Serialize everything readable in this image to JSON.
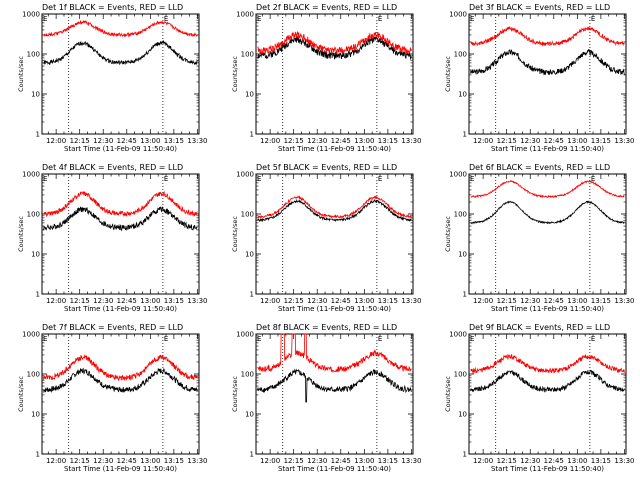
{
  "figure": {
    "background": "#ffffff",
    "colors": {
      "events": "#000000",
      "lld": "#ff0000",
      "axes": "#000000"
    }
  },
  "chart_data": [
    {
      "type": "line",
      "title": "Det 1f BLACK = Events, RED = LLD",
      "xlabel": "Start Time (11-Feb-09 11:50:40)",
      "ylabel": "Counts/sec",
      "yscale": "log",
      "ylim": [
        1,
        1000
      ],
      "y_tick_labels": [
        "1",
        "10",
        "100",
        "1000"
      ],
      "x_tick_labels": [
        "12:00",
        "12:15",
        "12:30",
        "12:45",
        "13:00",
        "13:15",
        "13:30"
      ],
      "vertical_dotted_lines": [
        "12:08",
        "13:08"
      ],
      "markers": [
        "E",
        "E"
      ],
      "grid": false,
      "series": [
        {
          "name": "BLACK = Events",
          "color": "#000000",
          "baseline": 60,
          "peak": 190,
          "peak1": "12:17",
          "peak2": "13:07",
          "noise": 0.05
        },
        {
          "name": "RED = LLD",
          "color": "#ff0000",
          "baseline": 300,
          "peak": 620,
          "peak1": "12:17",
          "peak2": "13:07",
          "noise": 0.04
        }
      ]
    },
    {
      "type": "line",
      "title": "Det 2f BLACK = Events, RED = LLD",
      "xlabel": "Start Time (11-Feb-09 11:50:40)",
      "ylabel": "Counts/sec",
      "yscale": "log",
      "ylim": [
        1,
        1000
      ],
      "y_tick_labels": [
        "1",
        "10",
        "100",
        "1000"
      ],
      "x_tick_labels": [
        "12:00",
        "12:15",
        "12:30",
        "12:45",
        "13:00",
        "13:15",
        "13:30"
      ],
      "vertical_dotted_lines": [
        "12:08",
        "13:08"
      ],
      "markers": [
        "E",
        "E"
      ],
      "grid": false,
      "series": [
        {
          "name": "BLACK = Events",
          "color": "#000000",
          "baseline": 90,
          "peak": 230,
          "peak1": "12:17",
          "peak2": "13:07",
          "noise": 0.09
        },
        {
          "name": "RED = LLD",
          "color": "#ff0000",
          "baseline": 120,
          "peak": 300,
          "peak1": "12:17",
          "peak2": "13:07",
          "noise": 0.09
        }
      ]
    },
    {
      "type": "line",
      "title": "Det 3f BLACK = Events, RED = LLD",
      "xlabel": "Start Time (11-Feb-09 11:50:40)",
      "ylabel": "Counts/sec",
      "yscale": "log",
      "ylim": [
        1,
        1000
      ],
      "y_tick_labels": [
        "1",
        "10",
        "100",
        "1000"
      ],
      "x_tick_labels": [
        "12:00",
        "12:15",
        "12:30",
        "12:45",
        "13:00",
        "13:15",
        "13:30"
      ],
      "vertical_dotted_lines": [
        "12:08",
        "13:08"
      ],
      "markers": [
        "E",
        "E"
      ],
      "grid": false,
      "series": [
        {
          "name": "BLACK = Events",
          "color": "#000000",
          "baseline": 35,
          "peak": 110,
          "peak1": "12:17",
          "peak2": "13:07",
          "noise": 0.07
        },
        {
          "name": "RED = LLD",
          "color": "#ff0000",
          "baseline": 180,
          "peak": 430,
          "peak1": "12:17",
          "peak2": "13:07",
          "noise": 0.05
        }
      ]
    },
    {
      "type": "line",
      "title": "Det 4f BLACK = Events, RED = LLD",
      "xlabel": "Start Time (11-Feb-09 11:50:40)",
      "ylabel": "Counts/sec",
      "yscale": "log",
      "ylim": [
        1,
        1000
      ],
      "y_tick_labels": [
        "1",
        "10",
        "100",
        "1000"
      ],
      "x_tick_labels": [
        "12:00",
        "12:15",
        "12:30",
        "12:45",
        "13:00",
        "13:15",
        "13:30"
      ],
      "vertical_dotted_lines": [
        "12:08",
        "13:08"
      ],
      "markers": [
        "E",
        "E"
      ],
      "grid": false,
      "series": [
        {
          "name": "BLACK = Events",
          "color": "#000000",
          "baseline": 45,
          "peak": 130,
          "peak1": "12:17",
          "peak2": "13:07",
          "noise": 0.07
        },
        {
          "name": "RED = LLD",
          "color": "#ff0000",
          "baseline": 100,
          "peak": 320,
          "peak1": "12:17",
          "peak2": "13:07",
          "noise": 0.06
        }
      ]
    },
    {
      "type": "line",
      "title": "Det 5f BLACK = Events, RED = LLD",
      "xlabel": "Start Time (11-Feb-09 11:50:40)",
      "ylabel": "Counts/sec",
      "yscale": "log",
      "ylim": [
        1,
        1000
      ],
      "y_tick_labels": [
        "1",
        "10",
        "100",
        "1000"
      ],
      "x_tick_labels": [
        "12:00",
        "12:15",
        "12:30",
        "12:45",
        "13:00",
        "13:15",
        "13:30"
      ],
      "vertical_dotted_lines": [
        "12:08",
        "13:08"
      ],
      "markers": [
        "E",
        "E"
      ],
      "grid": false,
      "series": [
        {
          "name": "BLACK = Events",
          "color": "#000000",
          "baseline": 70,
          "peak": 210,
          "peak1": "12:17",
          "peak2": "13:07",
          "noise": 0.03
        },
        {
          "name": "RED = LLD",
          "color": "#ff0000",
          "baseline": 85,
          "peak": 260,
          "peak1": "12:17",
          "peak2": "13:07",
          "noise": 0.03
        }
      ]
    },
    {
      "type": "line",
      "title": "Det 6f BLACK = Events, RED = LLD",
      "xlabel": "Start Time (11-Feb-09 11:50:40)",
      "ylabel": "Counts/sec",
      "yscale": "log",
      "ylim": [
        1,
        1000
      ],
      "y_tick_labels": [
        "1",
        "10",
        "100",
        "1000"
      ],
      "x_tick_labels": [
        "12:00",
        "12:15",
        "12:30",
        "12:45",
        "13:00",
        "13:15",
        "13:30"
      ],
      "vertical_dotted_lines": [
        "12:08",
        "13:08"
      ],
      "markers": [
        "E",
        "E"
      ],
      "grid": false,
      "series": [
        {
          "name": "BLACK = Events",
          "color": "#000000",
          "baseline": 60,
          "peak": 200,
          "peak1": "12:17",
          "peak2": "13:07",
          "noise": 0.02
        },
        {
          "name": "RED = LLD",
          "color": "#ff0000",
          "baseline": 270,
          "peak": 650,
          "peak1": "12:17",
          "peak2": "13:07",
          "noise": 0.02
        }
      ]
    },
    {
      "type": "line",
      "title": "Det 7f BLACK = Events, RED = LLD",
      "xlabel": "Start Time (11-Feb-09 11:50:40)",
      "ylabel": "Counts/sec",
      "yscale": "log",
      "ylim": [
        1,
        1000
      ],
      "y_tick_labels": [
        "1",
        "10",
        "100",
        "1000"
      ],
      "x_tick_labels": [
        "12:00",
        "12:15",
        "12:30",
        "12:45",
        "13:00",
        "13:15",
        "13:30"
      ],
      "vertical_dotted_lines": [
        "12:08",
        "13:08"
      ],
      "markers": [
        "E",
        "E"
      ],
      "grid": false,
      "series": [
        {
          "name": "BLACK = Events",
          "color": "#000000",
          "baseline": 40,
          "peak": 120,
          "peak1": "12:17",
          "peak2": "13:07",
          "noise": 0.07
        },
        {
          "name": "RED = LLD",
          "color": "#ff0000",
          "baseline": 80,
          "peak": 260,
          "peak1": "12:17",
          "peak2": "13:07",
          "noise": 0.07
        }
      ]
    },
    {
      "type": "line",
      "title": "Det 8f BLACK = Events, RED = LLD",
      "xlabel": "Start Time (11-Feb-09 11:50:40)",
      "ylabel": "Counts/sec",
      "yscale": "log",
      "ylim": [
        1,
        1000
      ],
      "y_tick_labels": [
        "1",
        "10",
        "100",
        "1000"
      ],
      "x_tick_labels": [
        "12:00",
        "12:15",
        "12:30",
        "12:45",
        "13:00",
        "13:15",
        "13:30"
      ],
      "vertical_dotted_lines": [
        "12:08",
        "13:08"
      ],
      "markers": [
        "E",
        "E"
      ],
      "grid": false,
      "spikes": [
        {
          "start": "12:07",
          "end": "12:09",
          "series": "RED = LLD",
          "value": 1000
        },
        {
          "start": "12:14",
          "end": "12:16",
          "series": "RED = LLD",
          "value": 1000
        },
        {
          "start": "12:22",
          "end": "12:23",
          "series": "RED = LLD",
          "value": 1000
        },
        {
          "at": "12:23",
          "series": "BLACK = Events",
          "value": 20
        }
      ],
      "series": [
        {
          "name": "BLACK = Events",
          "color": "#000000",
          "baseline": 40,
          "peak": 110,
          "peak1": "12:17",
          "peak2": "13:07",
          "noise": 0.07
        },
        {
          "name": "RED = LLD",
          "color": "#ff0000",
          "baseline": 130,
          "peak": 330,
          "peak1": "12:17",
          "peak2": "13:07",
          "noise": 0.07
        }
      ]
    },
    {
      "type": "line",
      "title": "Det 9f BLACK = Events, RED = LLD",
      "xlabel": "Start Time (11-Feb-09 11:50:40)",
      "ylabel": "Counts/sec",
      "yscale": "log",
      "ylim": [
        1,
        1000
      ],
      "y_tick_labels": [
        "1",
        "10",
        "100",
        "1000"
      ],
      "x_tick_labels": [
        "12:00",
        "12:15",
        "12:30",
        "12:45",
        "13:00",
        "13:15",
        "13:30"
      ],
      "vertical_dotted_lines": [
        "12:08",
        "13:08"
      ],
      "markers": [
        "E",
        "E"
      ],
      "grid": false,
      "series": [
        {
          "name": "BLACK = Events",
          "color": "#000000",
          "baseline": 40,
          "peak": 110,
          "peak1": "12:17",
          "peak2": "13:07",
          "noise": 0.06
        },
        {
          "name": "RED = LLD",
          "color": "#ff0000",
          "baseline": 120,
          "peak": 270,
          "peak1": "12:17",
          "peak2": "13:07",
          "noise": 0.06
        }
      ]
    }
  ]
}
